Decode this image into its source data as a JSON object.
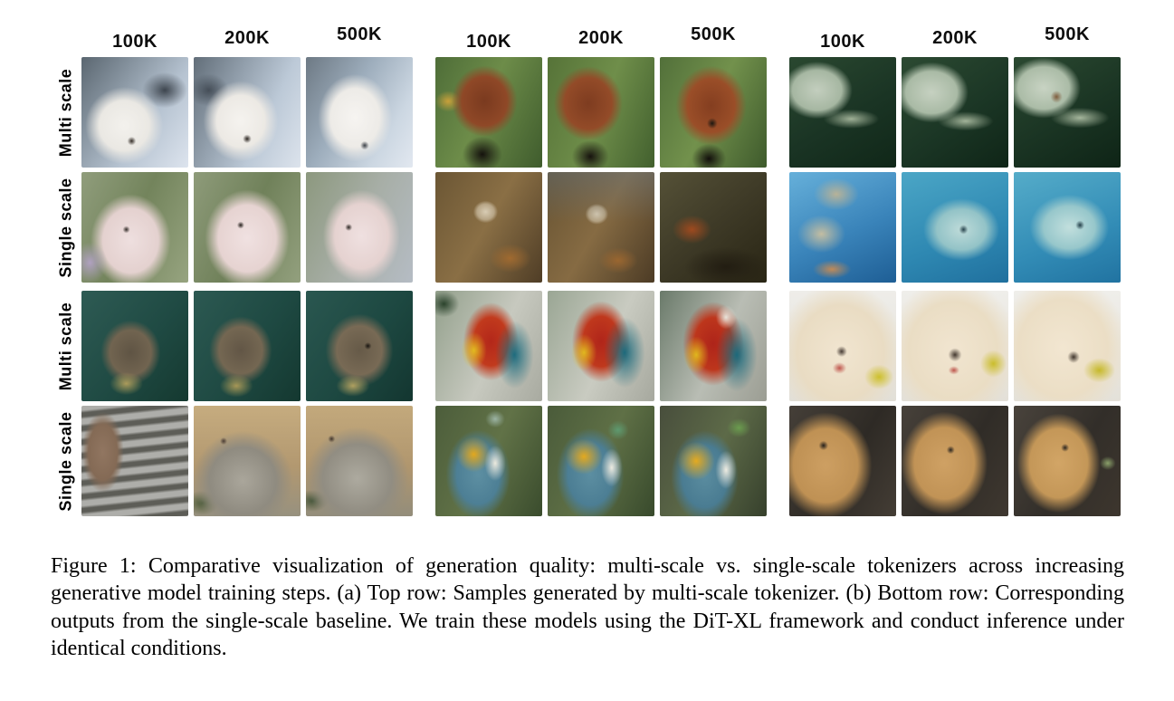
{
  "figure": {
    "column_headers": [
      "100K",
      "200K",
      "500K",
      "100K",
      "200K",
      "500K",
      "100K",
      "200K",
      "500K"
    ],
    "caption": "Figure 1: Comparative visualization of generation quality: multi-scale vs. single-scale tokenizers across increasing generative model training steps. (a) Top row: Samples generated by multi-scale tokenizer. (b) Bottom row: Corresponding outputs from the single-scale baseline. We train these models using the DiT-XL framework and conduct inference under identical conditions.",
    "grid": {
      "rows": [
        {
          "label": "Multi scale",
          "cells": [
            {
              "subject": "arctic fox",
              "step": "100K",
              "style": "background:radial-gradient(circle 6px at 47% 76%,#332c26 0%,rgba(51,44,38,0) 80%),radial-gradient(ellipse 52% 50% at 40% 62%,#f3f1ed 0%,#eae8e3 45%,rgba(234,232,227,0) 70%),radial-gradient(ellipse 34% 26% at 78% 30%,#3d454e 0%,rgba(61,69,78,0) 62%),linear-gradient(125deg,#5a6670 0%,#8a97a3 32%,#b6c3d1 62%,#dde4ee 100%)"
            },
            {
              "subject": "arctic fox",
              "step": "200K",
              "style": "background:radial-gradient(circle 6px at 50% 74%,#27211c 0%,rgba(39,33,28,0) 80%),radial-gradient(ellipse 50% 52% at 44% 58%,#f5f3ef 0%,#ece9e4 45%,rgba(236,233,228,0) 70%),radial-gradient(ellipse 30% 24% at 14% 30%,#454e58 0%,rgba(69,78,88,0) 62%),linear-gradient(115deg,#626e79 0%,#93a0ad 35%,#bcc9d7 65%,#dce3ec 100%)"
            },
            {
              "subject": "arctic fox",
              "step": "500K",
              "style": "background:radial-gradient(circle 6px at 55% 80%,#3a3f46 0%,rgba(58,63,70,0) 80%),radial-gradient(ellipse 48% 55% at 46% 55%,#f6f4f1 0%,#edebe7 48%,rgba(237,235,231,0) 72%),linear-gradient(120deg,#6d7984 0%,#9dadbc 40%,#ccd7e2 75%,#e2e8f0 100%)"
            },
            {
              "subject": "red panda",
              "step": "100K",
              "style": "background:radial-gradient(ellipse 30% 26% at 44% 88%,#15120d 0%,rgba(21,18,13,0) 62%),radial-gradient(ellipse 44% 46% at 46% 40%,#7a3a1f 0%,#8f4827 48%,rgba(143,72,39,0) 70%),radial-gradient(ellipse 20% 16% at 12% 40%,#c8a03a 0%,rgba(200,160,58,0) 60%),linear-gradient(115deg,#4e6d38 0%,#6d8c49 45%,#3f5c2d 100%)"
            },
            {
              "subject": "red panda",
              "step": "200K",
              "style": "background:radial-gradient(ellipse 28% 24% at 40% 90%,#17130e 0%,rgba(23,19,14,0) 62%),radial-gradient(ellipse 46% 48% at 38% 42%,#7e3c20 0%,#934b28 48%,rgba(147,75,40,0) 70%),linear-gradient(110deg,#567338 0%,#6f8e4a 50%,#42602e 100%)"
            },
            {
              "subject": "red panda",
              "step": "500K",
              "style": "background:radial-gradient(ellipse 26% 22% at 46% 92%,#120f0b 0%,rgba(18,15,11,0) 62%),radial-gradient(ellipse 7% 7% at 49% 60%,#1c1710 0%,rgba(28,23,16,0) 70%),radial-gradient(ellipse 46% 50% at 48% 44%,#843e20 0%,#9a4e28 48%,rgba(154,78,40,0) 72%),linear-gradient(115deg,#52703a 0%,#72914c 48%,#3e5a2c 100%)"
            },
            {
              "subject": "sea turtle",
              "step": "100K",
              "style": "background:radial-gradient(ellipse 42% 14% at 58% 56%,#9fb096 0%,rgba(159,176,150,0) 62%),radial-gradient(ellipse 46% 36% at 26% 30%,#c3cebe 0%,#a6b7a2 50%,rgba(166,183,162,0) 72%),linear-gradient(150deg,#2a4830 0%,#1a3424 55%,#102718 100%)"
            },
            {
              "subject": "sea turtle",
              "step": "200K",
              "style": "background:radial-gradient(ellipse 42% 14% at 60% 58%,#a2b399 0%,rgba(162,179,153,0) 62%),radial-gradient(ellipse 48% 38% at 28% 32%,#c6d1c1 0%,#a9baa5 50%,rgba(169,186,165,0) 72%),linear-gradient(145deg,#2c4a32 0%,#1b3625 55%,#0f2517 100%)"
            },
            {
              "subject": "sea turtle",
              "step": "500K",
              "style": "background:radial-gradient(ellipse 8% 8% at 40% 36%,#7e5c3c 0%,rgba(126,92,60,0) 70%),radial-gradient(ellipse 44% 15% at 62% 55%,#a5b69c 0%,rgba(165,182,156,0) 62%),radial-gradient(ellipse 48% 38% at 28% 28%,#c8d3c3 0%,#abbca7 50%,rgba(171,188,167,0) 72%),linear-gradient(150deg,#2b4931 0%,#1a3423 55%,#0e2416 100%)"
            }
          ]
        },
        {
          "label": "Single scale",
          "cells": [
            {
              "subject": "arctic fox",
              "step": "100K",
              "style": "background:radial-gradient(ellipse 26% 30% at 8% 82%,#b0a1c0 0%,rgba(176,161,192,0) 62%),radial-gradient(circle 5px at 42% 52%,#2e2824 0%,rgba(46,40,36,0) 80%),radial-gradient(ellipse 50% 56% at 46% 62%,#eedfdf 0%,#e4d1cf 52%,rgba(228,209,207,0) 75%),linear-gradient(115deg,#909d7c 0%,#73845c 48%,#97a480 100%)"
            },
            {
              "subject": "arctic fox",
              "step": "200K",
              "style": "background:radial-gradient(circle 5px at 44% 48%,#221d19 0%,rgba(34,29,25,0) 80%),radial-gradient(ellipse 52% 58% at 50% 60%,#f0e1e1 0%,#e6d3d1 52%,rgba(230,211,209,0) 76%),linear-gradient(115deg,#8e9b7a 0%,#70815a 50%,#93a07e 100%)"
            },
            {
              "subject": "arctic fox",
              "step": "500K",
              "style": "background:radial-gradient(circle 5px at 40% 50%,#2a2420 0%,rgba(42,36,32,0) 80%),radial-gradient(ellipse 48% 56% at 52% 58%,#efe0e0 0%,#e5d2d0 52%,rgba(229,210,208,0) 75%),linear-gradient(115deg,#8c987e 0%,#a7aea6 50%,#b5bcc4 100%)"
            },
            {
              "subject": "red panda",
              "step": "100K",
              "style": "background:radial-gradient(ellipse 16% 14% at 47% 36%,#d8ccb4 0%,#b7a586 50%,rgba(183,165,134,0) 72%),radial-gradient(ellipse 30% 20% at 70% 78%,#a06a30 0%,rgba(160,106,48,0) 65%),linear-gradient(120deg,#6b5634 0%,#8a6f45 48%,#4f3d26 100%)"
            },
            {
              "subject": "red panda",
              "step": "200K",
              "style": "background:linear-gradient(rgba(96,118,138,0.4) 0%,rgba(96,118,138,0) 45%),radial-gradient(ellipse 15% 13% at 46% 38%,#d4c8b0 0%,#b3a182 50%,rgba(179,161,130,0) 72%),radial-gradient(ellipse 28% 18% at 66% 80%,#9a6630 0%,rgba(154,102,48,0) 65%),linear-gradient(120deg,#675332 0%,#866b43 48%,#4c3b25 100%)"
            },
            {
              "subject": "red panda",
              "step": "500K",
              "style": "background:radial-gradient(ellipse 28% 20% at 30% 52%,#9e4a1f 0%,rgba(158,74,31,0) 65%),radial-gradient(ellipse 56% 26% at 62% 86%,#221d12 0%,rgba(34,29,18,0) 70%),linear-gradient(140deg,#555137 0%,#3d3926 52%,#292514 100%)"
            },
            {
              "subject": "sea turtle",
              "step": "100K",
              "style": "background:radial-gradient(ellipse 32% 22% at 44% 20%,#b7b298 0%,rgba(183,178,152,0) 66%),radial-gradient(ellipse 34% 26% at 30% 56%,#c3bda2 0%,rgba(195,189,162,0) 66%),radial-gradient(ellipse 30% 14% at 40% 88%,#c08a58 0%,rgba(192,138,88,0) 60%),linear-gradient(155deg,#66b0da 0%,#3a84ba 55%,#1e5e95 100%)"
            },
            {
              "subject": "sea turtle",
              "step": "200K",
              "style": "background:radial-gradient(ellipse 6% 6% at 58% 52%,#24404a 0%,rgba(36,64,74,0) 70%),radial-gradient(ellipse 48% 38% at 56% 52%,#bedbd9 0%,#93c3c7 48%,rgba(147,195,199,0) 74%),linear-gradient(160deg,#4ba6c6 0%,#2e88b2 60%,#20709e 100%)"
            },
            {
              "subject": "sea turtle",
              "step": "500K",
              "style": "background:radial-gradient(ellipse 6% 6% at 62% 48%,#223e48 0%,rgba(34,62,72,0) 70%),radial-gradient(ellipse 50% 40% at 52% 50%,#c2dfdd 0%,#97c7cb 48%,rgba(151,199,203,0) 74%),linear-gradient(160deg,#55acc9 0%,#328cb6 60%,#2173a1 100%)"
            }
          ]
        },
        {
          "label": "Multi scale",
          "cells": [
            {
              "subject": "otter",
              "step": "100K",
              "style": "background:radial-gradient(ellipse 24% 16% at 42% 84%,#ab9b5b 0%,rgba(171,155,91,0) 65%),radial-gradient(ellipse 40% 42% at 46% 56%,#5f5444 0%,#716450 48%,rgba(113,100,80,0) 70%),linear-gradient(130deg,#2e5b54 0%,#1f4a43 55%,#153930 100%)"
            },
            {
              "subject": "otter",
              "step": "200K",
              "style": "background:radial-gradient(ellipse 24% 16% at 40% 86%,#a79757 0%,rgba(167,151,87,0) 65%),radial-gradient(ellipse 42% 44% at 44% 54%,#625646 0%,#746752 48%,rgba(116,103,82,0) 70%),linear-gradient(125deg,#2c5952 0%,#1e4942 55%,#143830 100%)"
            },
            {
              "subject": "otter",
              "step": "500K",
              "style": "background:radial-gradient(circle 5px at 58% 50%,#17130f 0%,rgba(23,19,15,0) 80%),radial-gradient(ellipse 24% 15% at 44% 86%,#b0a060 0%,rgba(176,160,96,0) 65%),radial-gradient(ellipse 44% 46% at 50% 54%,#665a48 0%,#786a55 48%,rgba(120,106,85,0) 72%),linear-gradient(125deg,#2a5750 0%,#1d4841 55%,#133630 100%)"
            },
            {
              "subject": "scarlet macaw",
              "step": "100K",
              "style": "background:radial-gradient(ellipse 24% 20% at 8% 12%,#2b432c 0%,rgba(43,67,44,0) 60%),radial-gradient(ellipse 20% 28% at 36% 54%,#e2ba20 0%,rgba(226,186,32,0) 60%),radial-gradient(ellipse 28% 48% at 74% 58%,#1e6c7e 0%,rgba(30,108,126,0) 64%),radial-gradient(ellipse 38% 52% at 52% 46%,#b3271a 0%,#c13a1d 42%,rgba(193,58,29,0) 68%),linear-gradient(115deg,#93a08c 0%,#c7c9bf 55%,#a8aaa0 100%)"
            },
            {
              "subject": "scarlet macaw",
              "step": "200K",
              "style": "background:radial-gradient(ellipse 20% 28% at 34% 56%,#e0b81f 0%,rgba(224,184,31,0) 60%),radial-gradient(ellipse 30% 50% at 72% 56%,#1d6a7c 0%,rgba(29,106,124,0) 64%),radial-gradient(ellipse 40% 54% at 50% 46%,#b0251a 0%,#bf381d 42%,rgba(191,56,29,0) 68%),linear-gradient(115deg,#9aa694 0%,#c9cbc1 55%,#a6a89e 100%)"
            },
            {
              "subject": "scarlet macaw",
              "step": "500K",
              "style": "background:radial-gradient(ellipse 16% 18% at 62% 24%,#e8e4da 0%,rgba(232,228,218,0) 60%),radial-gradient(ellipse 20% 28% at 34% 58%,#dfb71e 0%,rgba(223,183,30,0) 60%),radial-gradient(ellipse 30% 52% at 72% 58%,#1c697b 0%,rgba(28,105,123,0) 64%),radial-gradient(ellipse 42% 56% at 50% 48%,#ae241a 0%,#bd361c 42%,rgba(189,54,28,0) 68%),linear-gradient(115deg,#6a7a6a 0%,#b9bdb4 55%,#9b9d93 100%)"
            },
            {
              "subject": "golden retriever",
              "step": "100K",
              "style": "background:radial-gradient(circle 8px at 49% 55%,#463b33 0%,rgba(70,59,51,0) 75%),radial-gradient(ellipse 10% 8% at 47% 70%,#c0564d 0%,rgba(192,86,77,0) 65%),radial-gradient(ellipse 22% 18% at 84% 78%,#cdc02c 0%,rgba(205,192,44,0) 62%),radial-gradient(ellipse 70% 74% at 48% 56%,#f1e5d0 0%,#e9dcc3 58%,rgba(233,220,195,0) 86%),linear-gradient(#eeede9 0%,#e2dfd7 100%)"
            },
            {
              "subject": "golden retriever",
              "step": "200K",
              "style": "background:radial-gradient(circle 10px at 50% 58%,#43382f 0%,rgba(67,56,47,0) 75%),radial-gradient(ellipse 8% 6% at 49% 72%,#bd544b 0%,rgba(189,84,75,0) 65%),radial-gradient(ellipse 20% 20% at 86% 66%,#cabd2b 0%,rgba(202,189,43,0) 62%),radial-gradient(ellipse 72% 76% at 48% 54%,#f1e5d0 0%,#eaddc4 58%,rgba(234,221,196,0) 86%),linear-gradient(#efeeea 0%,#e3e0d8 100%)"
            },
            {
              "subject": "golden retriever",
              "step": "500K",
              "style": "background:radial-gradient(circle 9px at 56% 60%,#3f352c 0%,rgba(63,53,44,0) 75%),radial-gradient(ellipse 24% 18% at 80% 72%,#c6b92a 0%,rgba(198,185,42,0) 62%),radial-gradient(ellipse 72% 76% at 46% 52%,#f2e6d1 0%,#ebdec5 58%,rgba(235,222,197,0) 86%),linear-gradient(#efeeea 0%,#e4e1d9 100%)"
            }
          ]
        },
        {
          "label": "Single scale",
          "cells": [
            {
              "subject": "otter",
              "step": "100K",
              "style": "background:radial-gradient(ellipse 28% 52% at 20% 42%,#917661 0%,#846a55 48%,rgba(132,106,85,0) 70%),repeating-linear-gradient(174deg,#aeaeaa 0px,#aeaeaa 5px,#5d5d57 8px,#5d5d57 12px,#aeaeaa 15px)"
            },
            {
              "subject": "otter",
              "step": "200K",
              "style": "background:radial-gradient(circle 5px at 28% 32%,#4a3c34 0%,rgba(74,60,52,0) 80%),radial-gradient(ellipse 60% 58% at 46% 68%,#aaa69b 0%,#8f8b80 52%,rgba(143,139,128,0) 78%),radial-gradient(ellipse 26% 18% at 8% 88%,#4b5b38 0%,rgba(75,91,56,0) 62%),linear-gradient(#c6ac7f 0%,#b29870 55%,#97917f 100%)"
            },
            {
              "subject": "otter",
              "step": "500K",
              "style": "background:radial-gradient(circle 5px at 24% 30%,#40342c 0%,rgba(64,52,44,0) 80%),radial-gradient(ellipse 62% 60% at 48% 66%,#adaa9f 0%,#918d82 52%,rgba(145,141,130,0) 78%),radial-gradient(ellipse 24% 16% at 6% 86%,#46563a 0%,rgba(70,86,58,0) 62%),linear-gradient(#c3a97c 0%,#b0966e 55%,#938d7b 100%)"
            },
            {
              "subject": "blue-and-yellow macaw",
              "step": "100K",
              "style": "background:radial-gradient(ellipse 14% 12% at 56% 12%,#9cb4a4 0%,rgba(156,180,164,0) 65%),radial-gradient(ellipse 16% 26% at 56% 52%,#eceadf 0%,rgba(236,234,223,0) 62%),radial-gradient(ellipse 26% 26% at 36% 44%,#e2a81e 0%,rgba(226,168,30,0) 62%),radial-gradient(ellipse 42% 56% at 40% 62%,#5d8fa2 0%,#4d7f95 48%,rgba(77,127,149,0) 72%),linear-gradient(115deg,#4c5d3b 0%,#617247 50%,#3a4c2d 100%)"
            },
            {
              "subject": "blue-and-yellow macaw",
              "step": "200K",
              "style": "background:radial-gradient(ellipse 16% 14% at 66% 22%,#5e9a70 0%,rgba(94,154,112,0) 62%),radial-gradient(ellipse 16% 28% at 60% 56%,#edebe0 0%,rgba(237,235,224,0) 62%),radial-gradient(ellipse 28% 26% at 34% 46%,#e3a91f 0%,rgba(227,169,31,0) 62%),radial-gradient(ellipse 44% 58% at 40% 62%,#5c8ea1 0%,#4c7e94 48%,rgba(76,126,148,0) 72%),linear-gradient(115deg,#4a5b3a 0%,#5f7046 50%,#384a2c 100%)"
            },
            {
              "subject": "blue-and-yellow macaw",
              "step": "500K",
              "style": "background:radial-gradient(ellipse 18% 14% at 74% 20%,#6b9c4f 0%,rgba(107,156,79,0) 62%),radial-gradient(ellipse 16% 28% at 62% 58%,#eeece1 0%,rgba(238,236,225,0) 62%),radial-gradient(ellipse 28% 28% at 34% 50%,#e4aa20 0%,rgba(228,170,32,0) 62%),radial-gradient(ellipse 44% 58% at 42% 64%,#5a8c9f 0%,#4a7c92 48%,rgba(74,124,146,0) 72%),linear-gradient(115deg,#484e3c 0%,#5d6a48 50%,#36402c 100%)"
            },
            {
              "subject": "golden retriever",
              "step": "100K",
              "style": "background:radial-gradient(circle 7px at 32% 36%,#241f1a 0%,rgba(36,31,26,0) 75%),radial-gradient(ellipse 58% 64% at 34% 54%,#cd9f62 0%,#bf9154 52%,rgba(191,145,84,0) 75%),linear-gradient(120deg,#453f38 0%,#2e2a25 55%,#443d35 100%)"
            },
            {
              "subject": "golden retriever",
              "step": "200K",
              "style": "background:radial-gradient(circle 6px at 46% 40%,#2a241e 0%,rgba(42,36,30,0) 75%),radial-gradient(ellipse 54% 62% at 40% 52%,#cfa164 0%,#c19356 52%,rgba(193,147,86,0) 75%),linear-gradient(120deg,#47413a 0%,#302c27 55%,#3f3830 100%)"
            },
            {
              "subject": "golden retriever",
              "step": "500K",
              "style": "background:radial-gradient(ellipse 12% 10% at 88% 52%,#8aa06a 0%,rgba(138,160,106,0) 62%),radial-gradient(circle 6px at 48% 38%,#2a241e 0%,rgba(42,36,30,0) 75%),radial-gradient(ellipse 52% 60% at 42% 52%,#d2a566 0%,#c49758 52%,rgba(196,151,88,0) 75%),linear-gradient(120deg,#49433c 0%,#322e29 55%,#3d362e 100%)"
            }
          ]
        }
      ]
    }
  }
}
